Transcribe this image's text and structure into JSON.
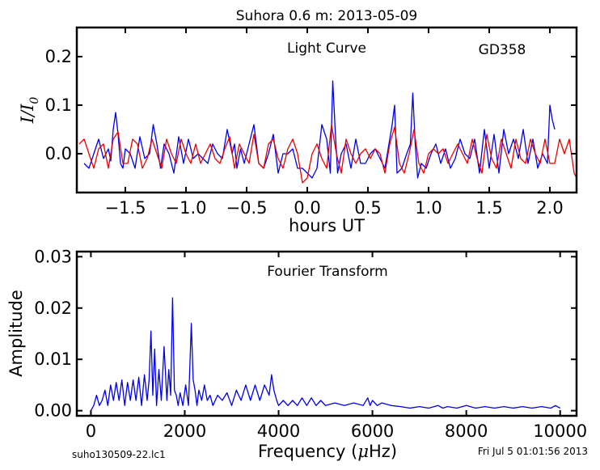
{
  "page": {
    "title": "Suhora 0.6 m:  2013-05-09",
    "footer_left": "suho130509-22.lc1",
    "footer_right": "Fri Jul  5 01:01:56 2013"
  },
  "chart_data": [
    {
      "type": "line",
      "title": "Light Curve",
      "annotation": "GD358",
      "xlabel": "hours UT",
      "ylabel": "I/I0",
      "ylabel_main": "I/I",
      "ylabel_sub": "0",
      "xlim": [
        -1.9,
        2.22
      ],
      "ylim": [
        -0.08,
        0.26
      ],
      "xticks": [
        -1.5,
        -1.0,
        -0.5,
        0.0,
        0.5,
        1.0,
        1.5,
        2.0
      ],
      "xtick_labels": [
        "−1.5",
        "−1.0",
        "−0.5",
        "0.0",
        "0.5",
        "1.0",
        "1.5",
        "2.0"
      ],
      "yticks": [
        0.0,
        0.1,
        0.2
      ],
      "ytick_labels": [
        "0.0",
        "0.1",
        "0.2"
      ],
      "grid": false,
      "series": [
        {
          "color": "#0000ee",
          "x": [
            -1.84,
            -1.8,
            -1.76,
            -1.72,
            -1.68,
            -1.64,
            -1.62,
            -1.6,
            -1.58,
            -1.56,
            -1.54,
            -1.52,
            -1.5,
            -1.46,
            -1.42,
            -1.38,
            -1.34,
            -1.3,
            -1.27,
            -1.24,
            -1.21,
            -1.18,
            -1.14,
            -1.1,
            -1.06,
            -1.02,
            -0.98,
            -0.94,
            -0.9,
            -0.86,
            -0.82,
            -0.78,
            -0.74,
            -0.7,
            -0.66,
            -0.62,
            -0.6,
            -0.58,
            -0.55,
            -0.52,
            -0.48,
            -0.44,
            -0.4,
            -0.36,
            -0.32,
            -0.28,
            -0.24,
            -0.2,
            -0.16,
            -0.12,
            -0.08,
            -0.04,
            0.0,
            0.04,
            0.08,
            0.12,
            0.16,
            0.19,
            0.21,
            0.23,
            0.25,
            0.28,
            0.32,
            0.36,
            0.4,
            0.44,
            0.48,
            0.52,
            0.56,
            0.6,
            0.64,
            0.68,
            0.7,
            0.72,
            0.74,
            0.78,
            0.82,
            0.85,
            0.87,
            0.89,
            0.91,
            0.94,
            0.98,
            1.02,
            1.06,
            1.1,
            1.14,
            1.18,
            1.22,
            1.26,
            1.3,
            1.34,
            1.38,
            1.42,
            1.46,
            1.5,
            1.54,
            1.58,
            1.62,
            1.66,
            1.7,
            1.74,
            1.78,
            1.82,
            1.86,
            1.9,
            1.94,
            1.98,
            2.0,
            2.02,
            2.04
          ],
          "y": [
            -0.02,
            -0.03,
            0.0,
            0.03,
            -0.01,
            0.01,
            -0.015,
            0.05,
            0.085,
            0.04,
            -0.02,
            -0.03,
            0.01,
            0.0,
            -0.03,
            0.035,
            -0.01,
            0.0,
            0.06,
            0.02,
            -0.03,
            0.02,
            0.0,
            -0.04,
            0.035,
            -0.02,
            0.03,
            -0.01,
            0.0,
            -0.01,
            -0.02,
            0.02,
            0.0,
            -0.01,
            0.05,
            0.0,
            0.02,
            -0.03,
            0.01,
            -0.02,
            0.02,
            0.06,
            -0.02,
            -0.03,
            0.0,
            0.04,
            -0.04,
            0.0,
            0.0,
            0.01,
            -0.03,
            -0.03,
            -0.04,
            -0.05,
            -0.03,
            0.06,
            0.03,
            -0.04,
            0.15,
            0.05,
            -0.04,
            0.0,
            0.02,
            -0.03,
            0.03,
            -0.02,
            -0.02,
            0.0,
            0.01,
            -0.01,
            -0.03,
            0.03,
            0.06,
            0.1,
            -0.04,
            -0.03,
            0.0,
            0.02,
            0.125,
            0.02,
            -0.05,
            -0.02,
            -0.03,
            0.0,
            0.02,
            -0.02,
            0.01,
            -0.03,
            -0.01,
            0.03,
            0.0,
            -0.01,
            0.03,
            -0.04,
            0.05,
            -0.03,
            0.04,
            -0.04,
            0.05,
            0.0,
            0.03,
            -0.01,
            0.05,
            -0.02,
            0.03,
            -0.03,
            0.0,
            -0.02,
            0.1,
            0.07,
            0.05
          ]
        },
        {
          "color": "#ee0000",
          "x": [
            -1.88,
            -1.84,
            -1.8,
            -1.76,
            -1.72,
            -1.68,
            -1.64,
            -1.6,
            -1.56,
            -1.52,
            -1.48,
            -1.44,
            -1.4,
            -1.36,
            -1.32,
            -1.28,
            -1.24,
            -1.2,
            -1.16,
            -1.12,
            -1.08,
            -1.04,
            -1.0,
            -0.96,
            -0.92,
            -0.88,
            -0.84,
            -0.8,
            -0.76,
            -0.72,
            -0.68,
            -0.64,
            -0.6,
            -0.56,
            -0.52,
            -0.48,
            -0.44,
            -0.4,
            -0.36,
            -0.32,
            -0.28,
            -0.24,
            -0.2,
            -0.16,
            -0.12,
            -0.08,
            -0.04,
            0.0,
            0.04,
            0.08,
            0.12,
            0.16,
            0.2,
            0.24,
            0.28,
            0.32,
            0.36,
            0.4,
            0.44,
            0.48,
            0.52,
            0.56,
            0.6,
            0.64,
            0.68,
            0.72,
            0.76,
            0.8,
            0.84,
            0.88,
            0.92,
            0.96,
            1.0,
            1.04,
            1.08,
            1.12,
            1.16,
            1.2,
            1.24,
            1.28,
            1.32,
            1.36,
            1.4,
            1.44,
            1.48,
            1.52,
            1.56,
            1.6,
            1.64,
            1.68,
            1.72,
            1.76,
            1.8,
            1.84,
            1.88,
            1.92,
            1.96,
            2.0,
            2.04,
            2.08,
            2.12,
            2.16,
            2.2,
            2.22
          ],
          "y": [
            0.02,
            0.03,
            0.0,
            -0.03,
            0.01,
            0.02,
            -0.03,
            0.03,
            0.045,
            -0.02,
            -0.02,
            0.03,
            0.02,
            -0.03,
            -0.01,
            0.03,
            0.0,
            -0.03,
            0.03,
            0.0,
            -0.02,
            0.03,
            0.0,
            -0.02,
            0.02,
            -0.02,
            0.0,
            0.02,
            -0.01,
            -0.02,
            0.01,
            0.035,
            -0.03,
            0.02,
            0.0,
            -0.02,
            0.04,
            -0.02,
            -0.03,
            0.02,
            0.03,
            -0.01,
            -0.03,
            0.01,
            0.03,
            0.0,
            -0.06,
            -0.05,
            0.0,
            0.02,
            -0.01,
            -0.03,
            0.06,
            0.0,
            -0.04,
            0.03,
            0.0,
            -0.02,
            0.0,
            0.01,
            -0.01,
            0.01,
            0.0,
            -0.04,
            0.02,
            0.055,
            -0.02,
            -0.04,
            0.0,
            0.05,
            -0.02,
            -0.04,
            0.0,
            0.01,
            0.0,
            0.01,
            -0.02,
            0.0,
            0.02,
            0.0,
            -0.02,
            0.03,
            -0.01,
            -0.04,
            0.04,
            -0.01,
            -0.03,
            0.03,
            0.0,
            -0.03,
            0.03,
            -0.01,
            -0.02,
            0.03,
            0.0,
            -0.02,
            0.03,
            -0.02,
            -0.02,
            0.03,
            0.0,
            0.03,
            -0.04,
            -0.05
          ]
        }
      ]
    },
    {
      "type": "line",
      "title": "Fourier Transform",
      "xlabel": "Frequency (μHz)",
      "xlabel_pre": "Frequency (",
      "xlabel_mu": "μ",
      "xlabel_post": "Hz)",
      "ylabel": "Amplitude",
      "xlim": [
        -300,
        10350
      ],
      "ylim": [
        -0.001,
        0.031
      ],
      "xticks": [
        0,
        2000,
        4000,
        6000,
        8000,
        10000
      ],
      "xtick_labels": [
        "0",
        "2000",
        "4000",
        "6000",
        "8000",
        "10000"
      ],
      "yticks": [
        0.0,
        0.01,
        0.02,
        0.03
      ],
      "ytick_labels": [
        "0.00",
        "0.01",
        "0.02",
        "0.03"
      ],
      "grid": false,
      "series": [
        {
          "color": "#0000ee",
          "x": [
            0,
            60,
            120,
            180,
            240,
            300,
            360,
            420,
            480,
            540,
            600,
            660,
            720,
            780,
            840,
            900,
            960,
            1020,
            1080,
            1140,
            1200,
            1240,
            1280,
            1320,
            1360,
            1400,
            1450,
            1500,
            1560,
            1620,
            1660,
            1700,
            1740,
            1780,
            1820,
            1860,
            1900,
            1960,
            2020,
            2080,
            2140,
            2180,
            2220,
            2260,
            2300,
            2360,
            2420,
            2480,
            2540,
            2600,
            2700,
            2800,
            2900,
            3000,
            3100,
            3200,
            3300,
            3400,
            3500,
            3600,
            3700,
            3800,
            3850,
            3900,
            3960,
            4000,
            4100,
            4200,
            4300,
            4400,
            4500,
            4600,
            4700,
            4800,
            4900,
            5000,
            5200,
            5400,
            5600,
            5800,
            5900,
            5950,
            6000,
            6100,
            6200,
            6400,
            6600,
            6800,
            7000,
            7200,
            7400,
            7500,
            7600,
            7800,
            8000,
            8200,
            8400,
            8600,
            8800,
            9000,
            9200,
            9400,
            9600,
            9800,
            9900,
            10000
          ],
          "y": [
            0.0,
            0.001,
            0.003,
            0.001,
            0.002,
            0.004,
            0.001,
            0.005,
            0.002,
            0.0055,
            0.002,
            0.006,
            0.001,
            0.0055,
            0.002,
            0.006,
            0.002,
            0.0065,
            0.001,
            0.007,
            0.002,
            0.006,
            0.0155,
            0.003,
            0.012,
            0.001,
            0.008,
            0.002,
            0.0125,
            0.002,
            0.008,
            0.003,
            0.022,
            0.004,
            0.003,
            0.001,
            0.0035,
            0.001,
            0.005,
            0.001,
            0.017,
            0.006,
            0.004,
            0.001,
            0.004,
            0.002,
            0.005,
            0.002,
            0.003,
            0.001,
            0.003,
            0.002,
            0.0035,
            0.001,
            0.004,
            0.002,
            0.005,
            0.002,
            0.005,
            0.002,
            0.005,
            0.003,
            0.007,
            0.004,
            0.002,
            0.001,
            0.002,
            0.001,
            0.002,
            0.001,
            0.0025,
            0.001,
            0.0025,
            0.001,
            0.002,
            0.001,
            0.0015,
            0.001,
            0.0015,
            0.001,
            0.0025,
            0.001,
            0.002,
            0.001,
            0.0015,
            0.001,
            0.0008,
            0.0005,
            0.0008,
            0.0005,
            0.001,
            0.0005,
            0.0008,
            0.0005,
            0.001,
            0.0005,
            0.0008,
            0.0005,
            0.0008,
            0.0005,
            0.0008,
            0.0005,
            0.0008,
            0.0005,
            0.001,
            0.0005
          ]
        }
      ]
    }
  ]
}
